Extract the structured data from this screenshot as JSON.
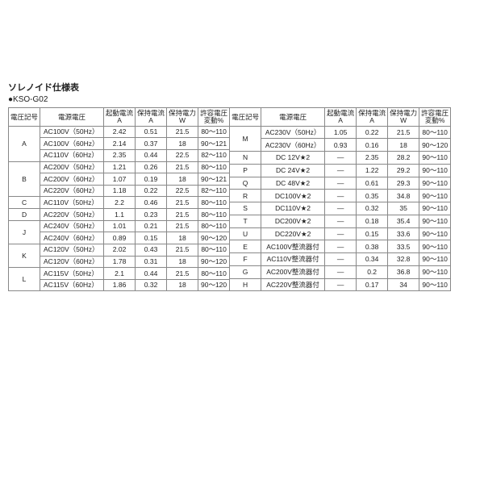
{
  "title": "ソレノイド仕様表",
  "subtitle": "●KSO-G02",
  "headers": {
    "voltage_code": "電圧記号",
    "power_voltage": "電源電圧",
    "starting_current": "起動電流",
    "holding_current": "保持電流",
    "holding_power": "保持電力",
    "voltage_variation": "許容電圧",
    "unit_a": "A",
    "unit_w": "W",
    "unit_pct": "変動%"
  },
  "left": [
    {
      "code": "A",
      "span": 3,
      "psv": "AC100V（50Hz）",
      "sc": "2.42",
      "hc": "0.51",
      "hp": "21.5",
      "vv": "80～110"
    },
    {
      "psv": "AC100V（60Hz）",
      "sc": "2.14",
      "hc": "0.37",
      "hp": "18",
      "vv": "90～121"
    },
    {
      "psv": "AC110V（60Hz）",
      "sc": "2.35",
      "hc": "0.44",
      "hp": "22.5",
      "vv": "82～110"
    },
    {
      "code": "B",
      "span": 3,
      "psv": "AC200V（50Hz）",
      "sc": "1.21",
      "hc": "0.26",
      "hp": "21.5",
      "vv": "80～110"
    },
    {
      "psv": "AC200V（60Hz）",
      "sc": "1.07",
      "hc": "0.19",
      "hp": "18",
      "vv": "90～121"
    },
    {
      "psv": "AC220V（60Hz）",
      "sc": "1.18",
      "hc": "0.22",
      "hp": "22.5",
      "vv": "82～110"
    },
    {
      "code": "C",
      "span": 1,
      "psv": "AC110V（50Hz）",
      "sc": "2.2",
      "hc": "0.46",
      "hp": "21.5",
      "vv": "80～110"
    },
    {
      "code": "D",
      "span": 1,
      "psv": "AC220V（50Hz）",
      "sc": "1.1",
      "hc": "0.23",
      "hp": "21.5",
      "vv": "80～110"
    },
    {
      "code": "J",
      "span": 2,
      "psv": "AC240V（50Hz）",
      "sc": "1.01",
      "hc": "0.21",
      "hp": "21.5",
      "vv": "80～110"
    },
    {
      "psv": "AC240V（60Hz）",
      "sc": "0.89",
      "hc": "0.15",
      "hp": "18",
      "vv": "90～120"
    },
    {
      "code": "K",
      "span": 2,
      "psv": "AC120V（50Hz）",
      "sc": "2.02",
      "hc": "0.43",
      "hp": "21.5",
      "vv": "80～110"
    },
    {
      "psv": "AC120V（60Hz）",
      "sc": "1.78",
      "hc": "0.31",
      "hp": "18",
      "vv": "90～120"
    },
    {
      "code": "L",
      "span": 2,
      "psv": "AC115V（50Hz）",
      "sc": "2.1",
      "hc": "0.44",
      "hp": "21.5",
      "vv": "80～110"
    },
    {
      "psv": "AC115V（60Hz）",
      "sc": "1.86",
      "hc": "0.32",
      "hp": "18",
      "vv": "90～120"
    }
  ],
  "right": [
    {
      "code": "M",
      "span": 2,
      "psv": "AC230V（50Hz）",
      "sc": "1.05",
      "hc": "0.22",
      "hp": "21.5",
      "vv": "80～110"
    },
    {
      "psv": "AC230V（60Hz）",
      "sc": "0.93",
      "hc": "0.16",
      "hp": "18",
      "vv": "90～120"
    },
    {
      "code": "N",
      "span": 1,
      "psv": "DC 12V★2",
      "sc": "—",
      "hc": "2.35",
      "hp": "28.2",
      "vv": "90～110"
    },
    {
      "code": "P",
      "span": 1,
      "psv": "DC 24V★2",
      "sc": "—",
      "hc": "1.22",
      "hp": "29.2",
      "vv": "90～110"
    },
    {
      "code": "Q",
      "span": 1,
      "psv": "DC 48V★2",
      "sc": "—",
      "hc": "0.61",
      "hp": "29.3",
      "vv": "90～110"
    },
    {
      "code": "R",
      "span": 1,
      "psv": "DC100V★2",
      "sc": "—",
      "hc": "0.35",
      "hp": "34.8",
      "vv": "90～110"
    },
    {
      "code": "S",
      "span": 1,
      "psv": "DC110V★2",
      "sc": "—",
      "hc": "0.32",
      "hp": "35",
      "vv": "90～110"
    },
    {
      "code": "T",
      "span": 1,
      "psv": "DC200V★2",
      "sc": "—",
      "hc": "0.18",
      "hp": "35.4",
      "vv": "90～110"
    },
    {
      "code": "U",
      "span": 1,
      "psv": "DC220V★2",
      "sc": "—",
      "hc": "0.15",
      "hp": "33.6",
      "vv": "90～110"
    },
    {
      "code": "E",
      "span": 1,
      "psv": "AC100V整流器付",
      "sc": "—",
      "hc": "0.38",
      "hp": "33.5",
      "vv": "90～110"
    },
    {
      "code": "F",
      "span": 1,
      "psv": "AC110V整流器付",
      "sc": "—",
      "hc": "0.34",
      "hp": "32.8",
      "vv": "90～110"
    },
    {
      "code": "G",
      "span": 1,
      "psv": "AC200V整流器付",
      "sc": "—",
      "hc": "0.2",
      "hp": "36.8",
      "vv": "90～110"
    },
    {
      "code": "H",
      "span": 1,
      "psv": "AC220V整流器付",
      "sc": "—",
      "hc": "0.17",
      "hp": "34",
      "vv": "90～110"
    }
  ]
}
